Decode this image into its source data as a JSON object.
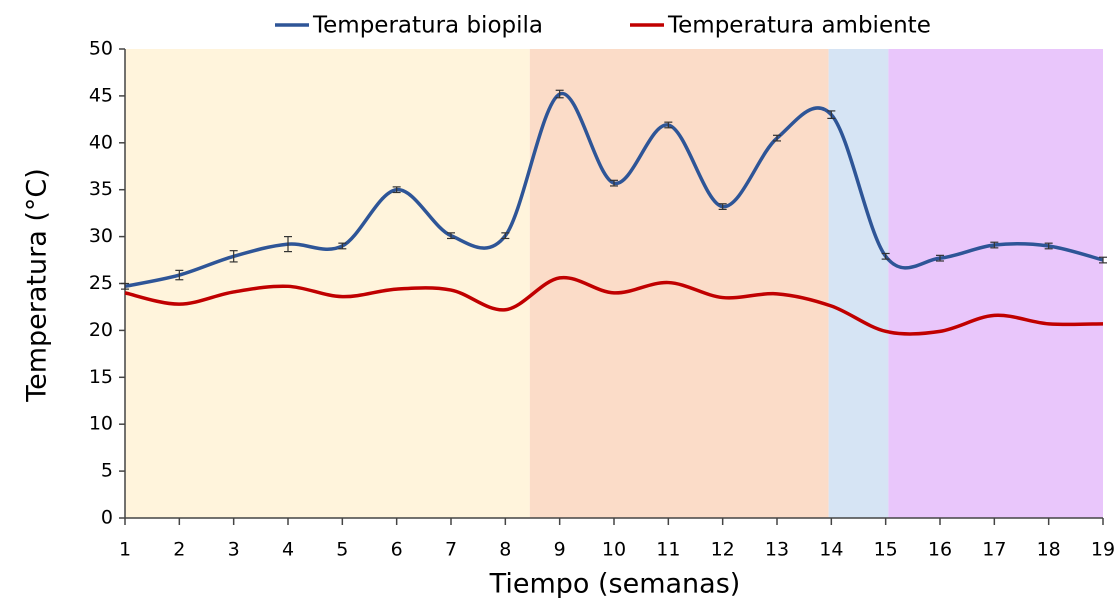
{
  "chart_data": {
    "type": "line",
    "x_label": "Tiempo (semanas)",
    "y_label": "Temperatura (°C)",
    "x": [
      1,
      2,
      3,
      4,
      5,
      6,
      7,
      8,
      9,
      10,
      11,
      12,
      13,
      14,
      15,
      16,
      17,
      18,
      19
    ],
    "series": [
      {
        "name": "Temperatura biopila",
        "color": "#2e5597",
        "values": [
          24.7,
          25.9,
          27.9,
          29.2,
          29.0,
          35.0,
          30.1,
          30.1,
          45.2,
          35.7,
          41.9,
          33.2,
          40.5,
          43.0,
          27.9,
          27.7,
          29.1,
          29.0,
          27.5
        ],
        "errors": [
          0.3,
          0.5,
          0.6,
          0.8,
          0.3,
          0.3,
          0.3,
          0.3,
          0.4,
          0.3,
          0.3,
          0.3,
          0.3,
          0.4,
          0.3,
          0.3,
          0.3,
          0.3,
          0.3
        ]
      },
      {
        "name": "Temperatura ambiente",
        "color": "#c00000",
        "values": [
          24.0,
          22.8,
          24.1,
          24.7,
          23.6,
          24.4,
          24.3,
          22.2,
          25.6,
          24.0,
          25.1,
          23.5,
          23.9,
          22.6,
          19.9,
          19.9,
          21.6,
          20.7,
          20.7
        ]
      }
    ],
    "regions": [
      {
        "from": 1,
        "to": 8.45,
        "color": "#fff4dc"
      },
      {
        "from": 8.45,
        "to": 13.95,
        "color": "#fbdcc8"
      },
      {
        "from": 13.95,
        "to": 15.05,
        "color": "#d6e4f4"
      },
      {
        "from": 15.05,
        "to": 19,
        "color": "#e9c6fb"
      }
    ],
    "xlim": [
      1,
      19
    ],
    "xticks": [
      1,
      2,
      3,
      4,
      5,
      6,
      7,
      8,
      9,
      10,
      11,
      12,
      13,
      14,
      15,
      16,
      17,
      18,
      19
    ],
    "ylim": [
      0,
      50
    ],
    "yticks": [
      0,
      5,
      10,
      15,
      20,
      25,
      30,
      35,
      40,
      45,
      50
    ],
    "legend": "top",
    "smooth": true
  }
}
